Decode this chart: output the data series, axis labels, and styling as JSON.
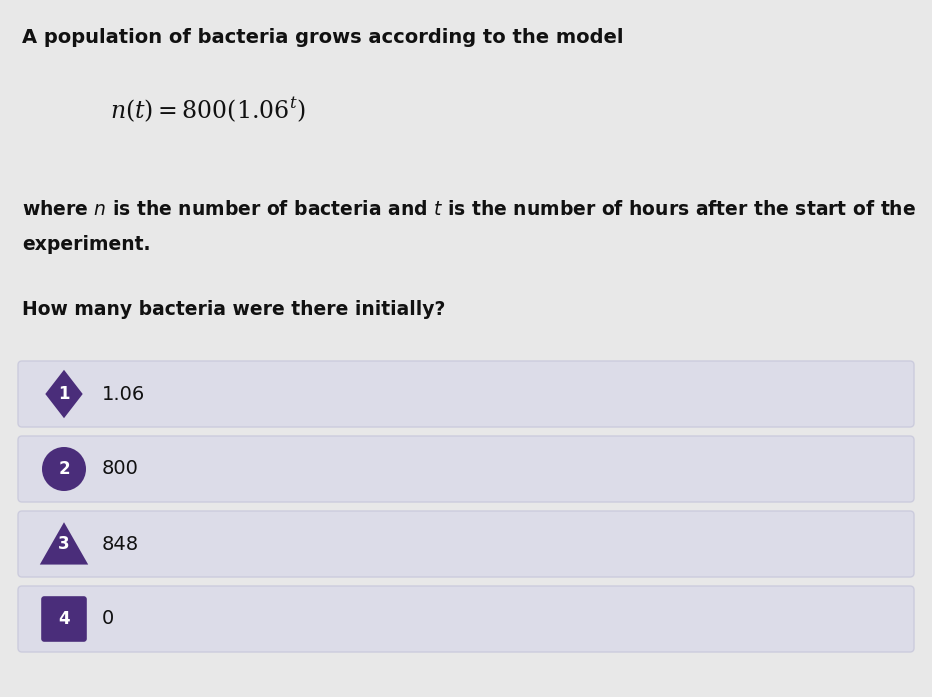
{
  "background_color": "#e8e8e8",
  "title_line1": "A population of bacteria grows according to the model",
  "formula_display": "$n(t) = 800(1.06^t)$",
  "desc_line1": "where $n$ is the number of bacteria and $t$ is the number of hours after the start of the",
  "desc_line2": "experiment.",
  "question": "How many bacteria were there initially?",
  "options": [
    {
      "num": "1",
      "text": "1.06",
      "shape": "diamond",
      "color": "#4a2d7a"
    },
    {
      "num": "2",
      "text": "800",
      "shape": "circle",
      "color": "#4a2d7a"
    },
    {
      "num": "3",
      "text": "848",
      "shape": "triangle",
      "color": "#4a2d7a"
    },
    {
      "num": "4",
      "text": "0",
      "shape": "square",
      "color": "#4a2d7a"
    }
  ],
  "option_bar_color": "#dcdce8",
  "option_bar_edge_color": "#ccccdd",
  "text_color": "#111111",
  "option_text_color": "#111111",
  "badge_text_color": "#ffffff",
  "font_size_title": 14,
  "font_size_formula": 17,
  "font_size_description": 13.5,
  "font_size_question": 13.5,
  "font_size_option_text": 13,
  "font_size_badge": 11
}
